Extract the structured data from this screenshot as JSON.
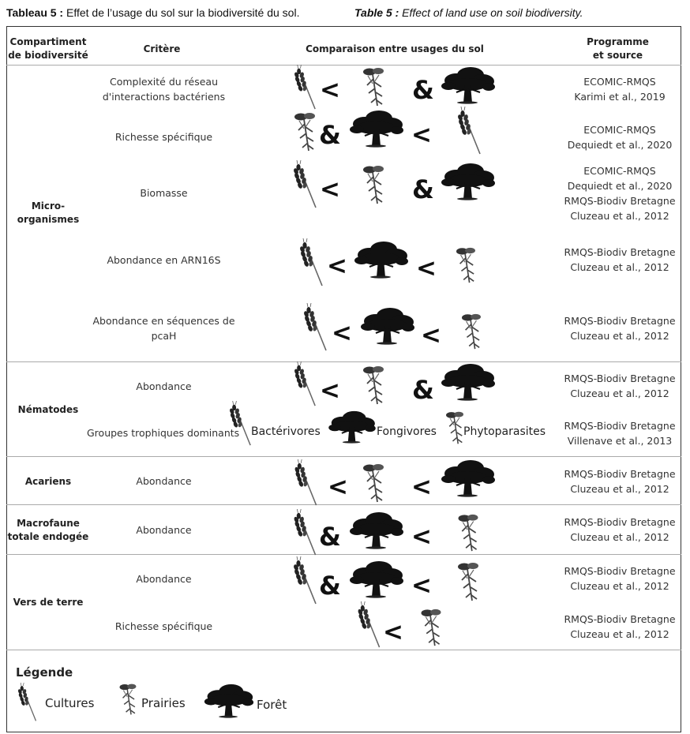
{
  "caption_fr": {
    "label": "Tableau 5 :",
    "text": "Effet de l’usage du sol sur la biodiversité du sol."
  },
  "caption_en": {
    "label": "Table 5 :",
    "text": "Effect of land use on soil biodiversity."
  },
  "headers": {
    "compartment": [
      "Compartiment",
      "de biodiversité"
    ],
    "criterion": "Critère",
    "comparison": "Comparaison entre usages du sol",
    "source": [
      "Programme",
      "et source"
    ]
  },
  "compartments": {
    "micro": [
      "Micro-",
      "organismes"
    ],
    "nematodes": "Nématodes",
    "acariens": "Acariens",
    "macrofaune": [
      "Macrofaune",
      "totale endogée"
    ],
    "vers": "Vers de terre"
  },
  "rows": [
    {
      "criterion": [
        "Complexité du réseau",
        "d'interactions bactériens"
      ],
      "source": [
        "ECOMIC-RMQS",
        "Karimi et al., 2019"
      ]
    },
    {
      "criterion": [
        "Richesse spécifique"
      ],
      "source": [
        "ECOMIC-RMQS",
        "Dequiedt et al., 2020"
      ]
    },
    {
      "criterion": [
        "Biomasse"
      ],
      "source": [
        "ECOMIC-RMQS",
        "Dequiedt et al., 2020",
        "RMQS-Biodiv Bretagne",
        "Cluzeau et al., 2012"
      ]
    },
    {
      "criterion": [
        "Abondance en ARN16S"
      ],
      "source": [
        "RMQS-Biodiv Bretagne",
        "Cluzeau et al., 2012"
      ]
    },
    {
      "criterion": [
        "Abondance en séquences de",
        "pcaH"
      ],
      "source": [
        "RMQS-Biodiv Bretagne",
        "Cluzeau et al., 2012"
      ]
    },
    {
      "criterion": [
        "Abondance"
      ],
      "source": [
        "RMQS-Biodiv Bretagne",
        "Cluzeau et al., 2012"
      ]
    },
    {
      "criterion": [
        "Groupes trophiques dominants"
      ],
      "source": [
        "RMQS-Biodiv Bretagne",
        "Villenave et al., 2013"
      ]
    },
    {
      "criterion": [
        "Abondance"
      ],
      "source": [
        "RMQS-Biodiv Bretagne",
        "Cluzeau et al., 2012"
      ]
    },
    {
      "criterion": [
        "Abondance"
      ],
      "source": [
        "RMQS-Biodiv Bretagne",
        "Cluzeau et al., 2012"
      ]
    },
    {
      "criterion": [
        "Abondance"
      ],
      "source": [
        "RMQS-Biodiv Bretagne",
        "Cluzeau et al., 2012"
      ]
    },
    {
      "criterion": [
        "Richesse spécifique"
      ],
      "source": [
        "RMQS-Biodiv Bretagne",
        "Cluzeau et al., 2012"
      ]
    }
  ],
  "comparisons": [
    [
      "wheat-icon",
      "<",
      "grass-icon",
      "&",
      "tree-icon"
    ],
    [
      "grass-icon",
      "&",
      "tree-icon",
      "<",
      "wheat-icon"
    ],
    [
      "wheat-icon",
      "<",
      "grass-icon",
      "&",
      "tree-icon"
    ],
    [
      "wheat-icon",
      "<",
      "tree-icon",
      "<",
      "grass-icon"
    ],
    [
      "wheat-icon",
      "<",
      "tree-icon",
      "<",
      "grass-icon"
    ],
    [
      "wheat-icon",
      "<",
      "grass-icon",
      "&",
      "tree-icon"
    ],
    [
      "wheat-icon",
      "tree-icon",
      "grass-icon"
    ],
    [
      "wheat-icon",
      "<",
      "grass-icon",
      "<",
      "tree-icon"
    ],
    [
      "wheat-icon",
      "&",
      "tree-icon",
      "<",
      "grass-icon"
    ],
    [
      "wheat-icon",
      "&",
      "tree-icon",
      "<",
      "grass-icon"
    ],
    [
      "wheat-icon",
      "<",
      "grass-icon"
    ]
  ],
  "trophic_groups": {
    "bacterivores": "Bactérivores",
    "fongivores": "Fongivores",
    "phytoparasites": "Phytoparasites"
  },
  "legend": {
    "title": "Légende",
    "cultures": "Cultures",
    "prairies": "Prairies",
    "foret": "Forêt"
  }
}
